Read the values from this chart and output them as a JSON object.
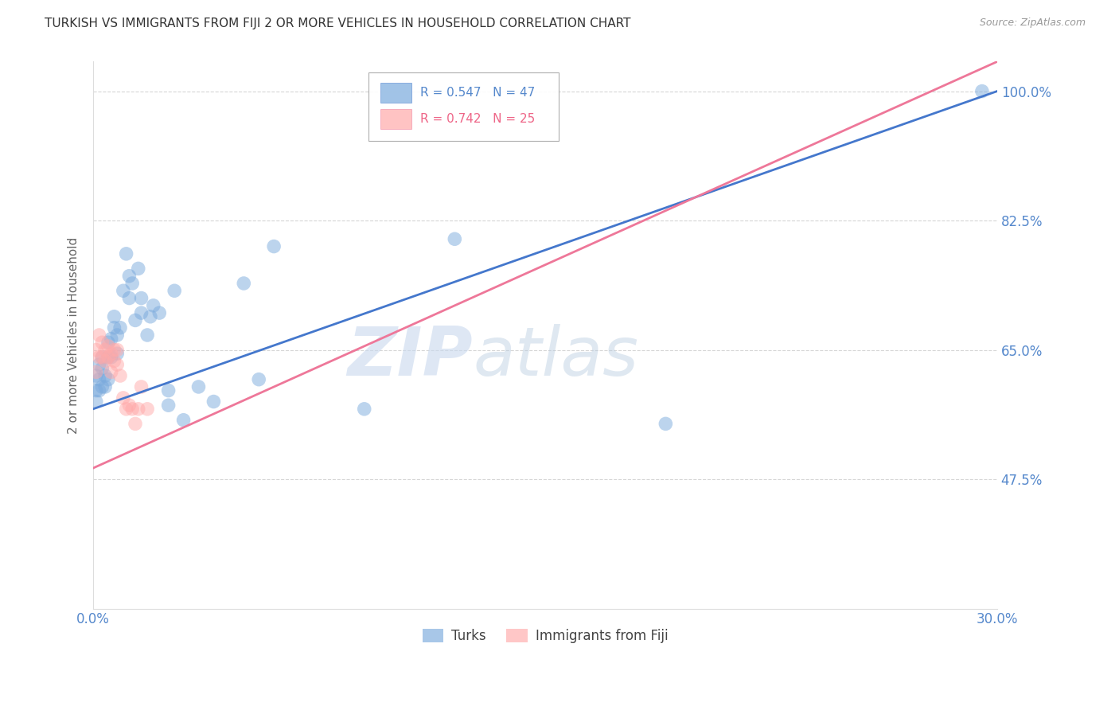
{
  "title": "TURKISH VS IMMIGRANTS FROM FIJI 2 OR MORE VEHICLES IN HOUSEHOLD CORRELATION CHART",
  "source": "Source: ZipAtlas.com",
  "xlabel": "",
  "ylabel": "2 or more Vehicles in Household",
  "xlim": [
    0.0,
    0.3
  ],
  "ylim": [
    0.3,
    1.04
  ],
  "xticks": [
    0.0,
    0.05,
    0.1,
    0.15,
    0.2,
    0.25,
    0.3
  ],
  "xticklabels": [
    "0.0%",
    "",
    "",
    "",
    "",
    "",
    "30.0%"
  ],
  "yticks": [
    0.475,
    0.65,
    0.825,
    1.0
  ],
  "yticklabels": [
    "47.5%",
    "65.0%",
    "82.5%",
    "100.0%"
  ],
  "grid_color": "#cccccc",
  "turks_color": "#7aaadd",
  "fiji_color": "#ffaaaa",
  "turks_line_color": "#4477cc",
  "fiji_line_color": "#ee7799",
  "turks_R": 0.547,
  "turks_N": 47,
  "fiji_R": 0.742,
  "fiji_N": 25,
  "watermark_zip": "ZIP",
  "watermark_atlas": "atlas",
  "legend_label_turks": "Turks",
  "legend_label_fiji": "Immigrants from Fiji",
  "background_color": "#ffffff",
  "title_color": "#333333",
  "axis_label_color": "#666666",
  "tick_label_color": "#5588cc",
  "source_color": "#999999",
  "blue_line_x0": 0.0,
  "blue_line_y0": 0.57,
  "blue_line_x1": 0.3,
  "blue_line_y1": 1.0,
  "pink_line_x0": 0.0,
  "pink_line_y0": 0.49,
  "pink_line_x1": 0.3,
  "pink_line_y1": 1.04,
  "turks_x": [
    0.001,
    0.001,
    0.001,
    0.002,
    0.002,
    0.002,
    0.003,
    0.003,
    0.003,
    0.004,
    0.004,
    0.005,
    0.005,
    0.005,
    0.006,
    0.006,
    0.007,
    0.007,
    0.008,
    0.008,
    0.009,
    0.01,
    0.011,
    0.012,
    0.012,
    0.013,
    0.014,
    0.015,
    0.016,
    0.016,
    0.018,
    0.019,
    0.02,
    0.022,
    0.025,
    0.025,
    0.027,
    0.03,
    0.035,
    0.04,
    0.05,
    0.055,
    0.06,
    0.09,
    0.12,
    0.19,
    0.295
  ],
  "turks_y": [
    0.595,
    0.615,
    0.58,
    0.61,
    0.63,
    0.595,
    0.625,
    0.64,
    0.6,
    0.615,
    0.6,
    0.64,
    0.66,
    0.61,
    0.665,
    0.64,
    0.68,
    0.695,
    0.67,
    0.645,
    0.68,
    0.73,
    0.78,
    0.75,
    0.72,
    0.74,
    0.69,
    0.76,
    0.7,
    0.72,
    0.67,
    0.695,
    0.71,
    0.7,
    0.575,
    0.595,
    0.73,
    0.555,
    0.6,
    0.58,
    0.74,
    0.61,
    0.79,
    0.57,
    0.8,
    0.55,
    1.0
  ],
  "fiji_x": [
    0.001,
    0.001,
    0.002,
    0.002,
    0.003,
    0.003,
    0.004,
    0.004,
    0.005,
    0.005,
    0.006,
    0.006,
    0.007,
    0.007,
    0.008,
    0.008,
    0.009,
    0.01,
    0.011,
    0.012,
    0.013,
    0.014,
    0.015,
    0.016,
    0.018
  ],
  "fiji_y": [
    0.65,
    0.62,
    0.67,
    0.64,
    0.66,
    0.64,
    0.635,
    0.65,
    0.64,
    0.655,
    0.62,
    0.645,
    0.635,
    0.65,
    0.63,
    0.65,
    0.615,
    0.585,
    0.57,
    0.575,
    0.57,
    0.55,
    0.57,
    0.6,
    0.57
  ]
}
